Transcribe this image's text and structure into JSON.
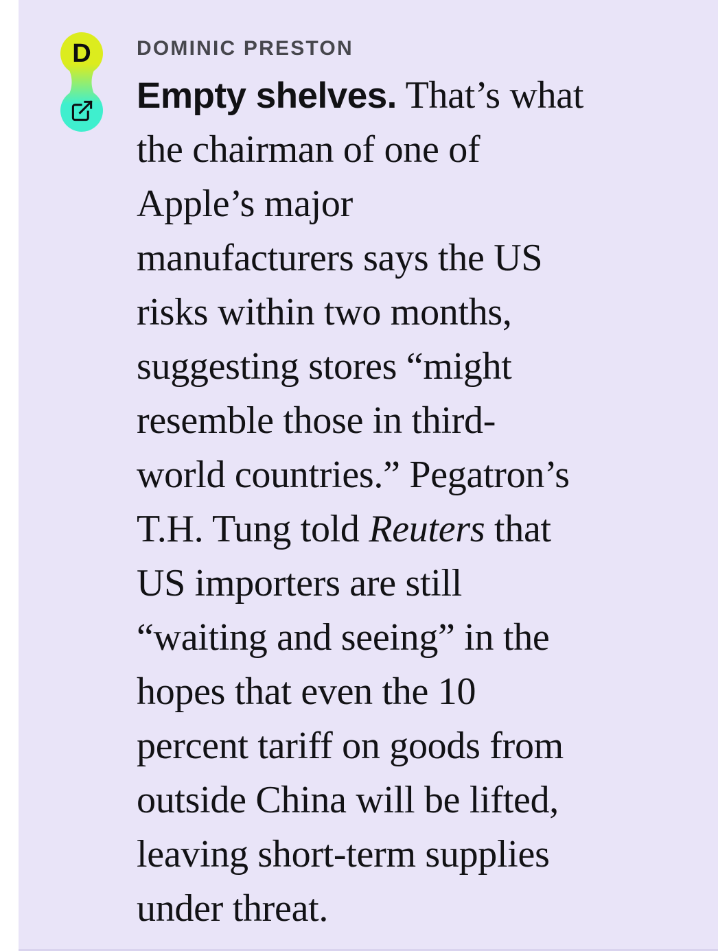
{
  "colors": {
    "background": "#e9e4f8",
    "gutter": "#ffffff",
    "body_text": "#121215",
    "author_text": "#47474d",
    "avatar_top": "#dcec1e",
    "avatar_bottom": "#3fefce",
    "divider": "#d9d3ee"
  },
  "author": {
    "name": "DOMINIC PRESTON",
    "initial": "D"
  },
  "icons": {
    "external_link": "external-link-icon"
  },
  "post": {
    "lines": [
      {
        "segments": [
          {
            "t": "Empty shelves.",
            "s": "lead"
          },
          {
            "t": " That’s what",
            "s": "serif"
          }
        ]
      },
      {
        "segments": [
          {
            "t": "the chairman of one of",
            "s": "serif"
          }
        ]
      },
      {
        "segments": [
          {
            "t": "Apple’s major",
            "s": "serif"
          }
        ]
      },
      {
        "segments": [
          {
            "t": "manufacturers says the US",
            "s": "serif"
          }
        ]
      },
      {
        "segments": [
          {
            "t": "risks within two months,",
            "s": "serif"
          }
        ]
      },
      {
        "segments": [
          {
            "t": "suggesting stores “might",
            "s": "serif"
          }
        ]
      },
      {
        "segments": [
          {
            "t": "resemble those in third-",
            "s": "serif"
          }
        ]
      },
      {
        "segments": [
          {
            "t": "world countries.” Pegatron’s",
            "s": "serif"
          }
        ]
      },
      {
        "segments": [
          {
            "t": "T.H. Tung told ",
            "s": "serif"
          },
          {
            "t": "Reuters",
            "s": "italic"
          },
          {
            "t": " that",
            "s": "serif"
          }
        ]
      },
      {
        "segments": [
          {
            "t": "US importers are still",
            "s": "serif"
          }
        ]
      },
      {
        "segments": [
          {
            "t": "“waiting and seeing” in the",
            "s": "serif"
          }
        ]
      },
      {
        "segments": [
          {
            "t": "hopes that even the 10",
            "s": "serif"
          }
        ]
      },
      {
        "segments": [
          {
            "t": "percent tariff on goods from",
            "s": "serif"
          }
        ]
      },
      {
        "segments": [
          {
            "t": "outside China will be lifted,",
            "s": "serif"
          }
        ]
      },
      {
        "segments": [
          {
            "t": "leaving short-term supplies",
            "s": "serif"
          }
        ]
      },
      {
        "segments": [
          {
            "t": "under threat.",
            "s": "serif"
          }
        ]
      }
    ]
  }
}
